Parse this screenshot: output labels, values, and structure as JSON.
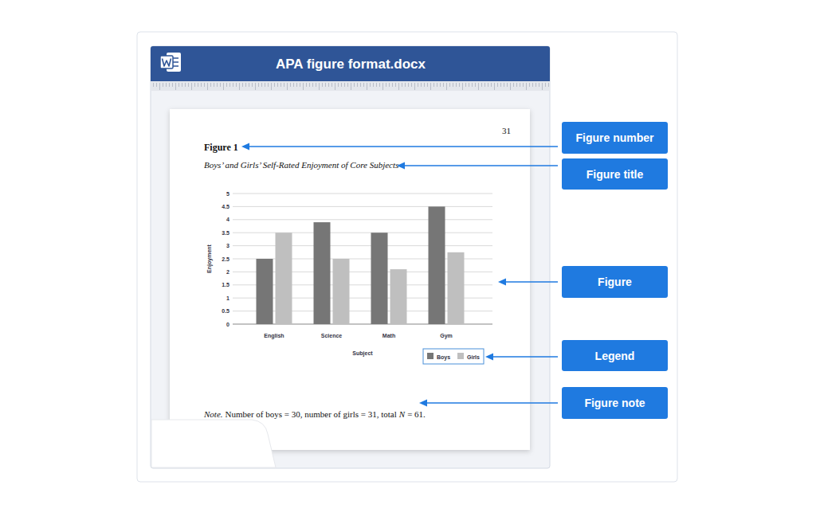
{
  "window": {
    "title": "APA figure format.docx"
  },
  "document": {
    "page_number": "31",
    "figure_number": "Figure 1",
    "note": {
      "label": "Note.",
      "text": "Number of boys = 30, number of girls = 31, total",
      "variable": "N",
      "text_end": "= 61."
    }
  },
  "chart_data": {
    "type": "bar",
    "title": "Boys’ and Girls’ Self-Rated Enjoyment of Core Subjects",
    "x_label": "Subject",
    "y_label": "Enjoyment",
    "categories": [
      "English",
      "Science",
      "Math",
      "Gym"
    ],
    "series": [
      {
        "name": "Boys",
        "color": "#767676",
        "values": [
          2.5,
          3.9,
          3.5,
          4.5
        ]
      },
      {
        "name": "Girls",
        "color": "#bfbfbf",
        "values": [
          3.5,
          2.5,
          2.1,
          2.75
        ]
      }
    ],
    "ylim": [
      0,
      5
    ],
    "yticks": [
      0,
      0.5,
      1,
      1.5,
      2,
      2.5,
      3,
      3.5,
      4,
      4.5,
      5
    ],
    "grid": true,
    "legend": "bottom-right"
  },
  "callouts": [
    "Figure number",
    "Figure title",
    "Figure",
    "Legend",
    "Figure note"
  ]
}
